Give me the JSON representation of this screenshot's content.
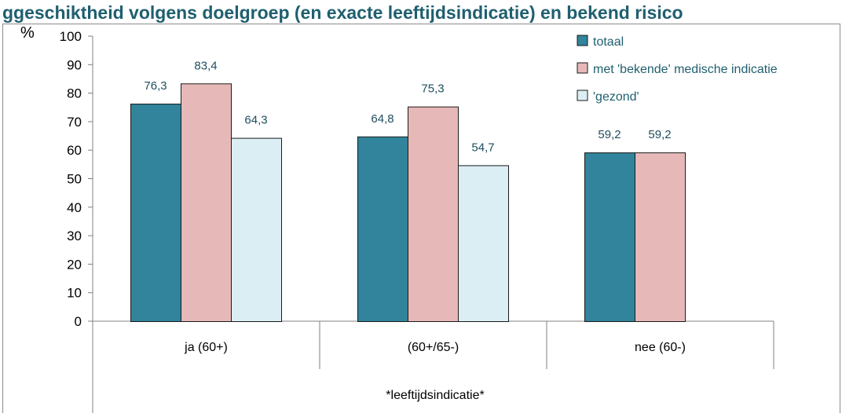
{
  "title": "ggeschiktheid volgens doelgroep (en exacte leeftijdsindicatie) en bekend risico",
  "chart_data": {
    "type": "bar",
    "y_unit": "%",
    "categories": [
      "ja (60+)",
      "(60+/65-)",
      "nee (60-)"
    ],
    "category_group_label": "*leeftijdsindicatie*",
    "series": [
      {
        "name": "totaal",
        "color": "#31849b",
        "values": [
          76.3,
          64.8,
          59.2
        ],
        "labels": [
          "76,3",
          "64,8",
          "59,2"
        ]
      },
      {
        "name": "met 'bekende' medische indicatie",
        "color": "#e6b9b8",
        "values": [
          83.4,
          75.3,
          59.2
        ],
        "labels": [
          "83,4",
          "75,3",
          "59,2"
        ]
      },
      {
        "name": "'gezond'",
        "color": "#dbeef4",
        "values": [
          64.3,
          54.7,
          null
        ],
        "labels": [
          "64,3",
          "54,7",
          ""
        ]
      }
    ],
    "ylim": [
      0,
      100
    ],
    "yticks": [
      0,
      10,
      20,
      30,
      40,
      50,
      60,
      70,
      80,
      90,
      100
    ],
    "grid": false,
    "legend_position": "top-right"
  }
}
